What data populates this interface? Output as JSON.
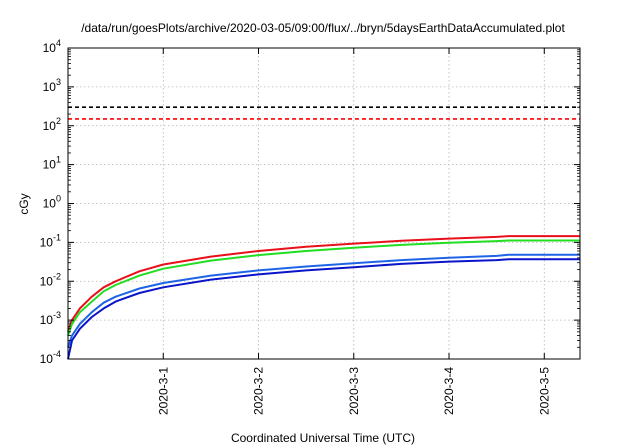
{
  "chart_data": {
    "type": "line",
    "title": "/data/run/goesPlots/archive/2020-03-05/09:00/flux/../bryn/5daysEarthDataAccumulated.plot",
    "xlabel": "Coordinated Universal Time (UTC)",
    "ylabel": "cGy",
    "y_scale": "log",
    "ylim": [
      0.0001,
      10000
    ],
    "y_ticks": [
      {
        "value": 0.0001,
        "base": "10",
        "exp": "-4"
      },
      {
        "value": 0.001,
        "base": "10",
        "exp": "-3"
      },
      {
        "value": 0.01,
        "base": "10",
        "exp": "-2"
      },
      {
        "value": 0.1,
        "base": "10",
        "exp": "-1"
      },
      {
        "value": 1,
        "base": "10",
        "exp": "0"
      },
      {
        "value": 10,
        "base": "10",
        "exp": "1"
      },
      {
        "value": 100,
        "base": "10",
        "exp": "2"
      },
      {
        "value": 1000,
        "base": "10",
        "exp": "3"
      },
      {
        "value": 10000,
        "base": "10",
        "exp": "4"
      }
    ],
    "xlim": [
      "2020-02-29T00:00",
      "2020-03-05T09:00"
    ],
    "x_ticks": [
      {
        "label": "2020-3-1",
        "value": "2020-03-01T00:00"
      },
      {
        "label": "2020-3-2",
        "value": "2020-03-02T00:00"
      },
      {
        "label": "2020-3-3",
        "value": "2020-03-03T00:00"
      },
      {
        "label": "2020-3-4",
        "value": "2020-03-04T00:00"
      },
      {
        "label": "2020-3-5",
        "value": "2020-03-05T00:00"
      }
    ],
    "grid": true,
    "thresholds": [
      {
        "value": 300,
        "color": "#000000",
        "dash": true
      },
      {
        "value": 150,
        "color": "#ff0000",
        "dash": true
      }
    ],
    "series": [
      {
        "color": "#e8101a",
        "x": [
          "2020-02-29T00:00",
          "2020-02-29T01:00",
          "2020-02-29T03:00",
          "2020-02-29T06:00",
          "2020-02-29T09:00",
          "2020-02-29T12:00",
          "2020-02-29T18:00",
          "2020-03-01T00:00",
          "2020-03-01T12:00",
          "2020-03-02T00:00",
          "2020-03-02T12:00",
          "2020-03-03T00:00",
          "2020-03-03T12:00",
          "2020-03-04T00:00",
          "2020-03-04T12:00",
          "2020-03-04T15:00",
          "2020-03-05T00:00",
          "2020-03-05T09:00"
        ],
        "values": [
          0.0005,
          0.001,
          0.002,
          0.004,
          0.007,
          0.01,
          0.018,
          0.027,
          0.043,
          0.06,
          0.077,
          0.093,
          0.11,
          0.125,
          0.138,
          0.145,
          0.145,
          0.145
        ]
      },
      {
        "color": "#22dd22",
        "x": [
          "2020-02-29T00:00",
          "2020-02-29T01:00",
          "2020-02-29T03:00",
          "2020-02-29T06:00",
          "2020-02-29T09:00",
          "2020-02-29T12:00",
          "2020-02-29T18:00",
          "2020-03-01T00:00",
          "2020-03-01T12:00",
          "2020-03-02T00:00",
          "2020-03-02T12:00",
          "2020-03-03T00:00",
          "2020-03-03T12:00",
          "2020-03-04T00:00",
          "2020-03-04T12:00",
          "2020-03-04T15:00",
          "2020-03-05T00:00",
          "2020-03-05T09:00"
        ],
        "values": [
          0.0004,
          0.0008,
          0.0016,
          0.003,
          0.0055,
          0.008,
          0.014,
          0.021,
          0.034,
          0.047,
          0.06,
          0.073,
          0.086,
          0.098,
          0.108,
          0.112,
          0.112,
          0.112
        ]
      },
      {
        "color": "#1e64e6",
        "x": [
          "2020-02-29T00:00",
          "2020-02-29T01:00",
          "2020-02-29T03:00",
          "2020-02-29T06:00",
          "2020-02-29T09:00",
          "2020-02-29T12:00",
          "2020-02-29T18:00",
          "2020-03-01T00:00",
          "2020-03-01T12:00",
          "2020-03-02T00:00",
          "2020-03-02T12:00",
          "2020-03-03T00:00",
          "2020-03-03T12:00",
          "2020-03-04T00:00",
          "2020-03-04T12:00",
          "2020-03-04T15:00",
          "2020-03-05T00:00",
          "2020-03-05T09:00"
        ],
        "values": [
          0.0002,
          0.0004,
          0.0008,
          0.0016,
          0.0028,
          0.004,
          0.0065,
          0.009,
          0.014,
          0.019,
          0.024,
          0.029,
          0.035,
          0.04,
          0.045,
          0.048,
          0.048,
          0.048
        ]
      },
      {
        "color": "#0a14c8",
        "x": [
          "2020-02-29T00:00",
          "2020-02-29T01:00",
          "2020-02-29T03:00",
          "2020-02-29T06:00",
          "2020-02-29T09:00",
          "2020-02-29T12:00",
          "2020-02-29T18:00",
          "2020-03-01T00:00",
          "2020-03-01T12:00",
          "2020-03-02T00:00",
          "2020-03-02T12:00",
          "2020-03-03T00:00",
          "2020-03-03T12:00",
          "2020-03-04T00:00",
          "2020-03-04T12:00",
          "2020-03-04T15:00",
          "2020-03-05T00:00",
          "2020-03-05T09:00"
        ],
        "values": [
          0.0001,
          0.0003,
          0.0006,
          0.0012,
          0.002,
          0.003,
          0.005,
          0.007,
          0.011,
          0.015,
          0.019,
          0.023,
          0.028,
          0.032,
          0.035,
          0.037,
          0.037,
          0.037
        ]
      }
    ]
  }
}
